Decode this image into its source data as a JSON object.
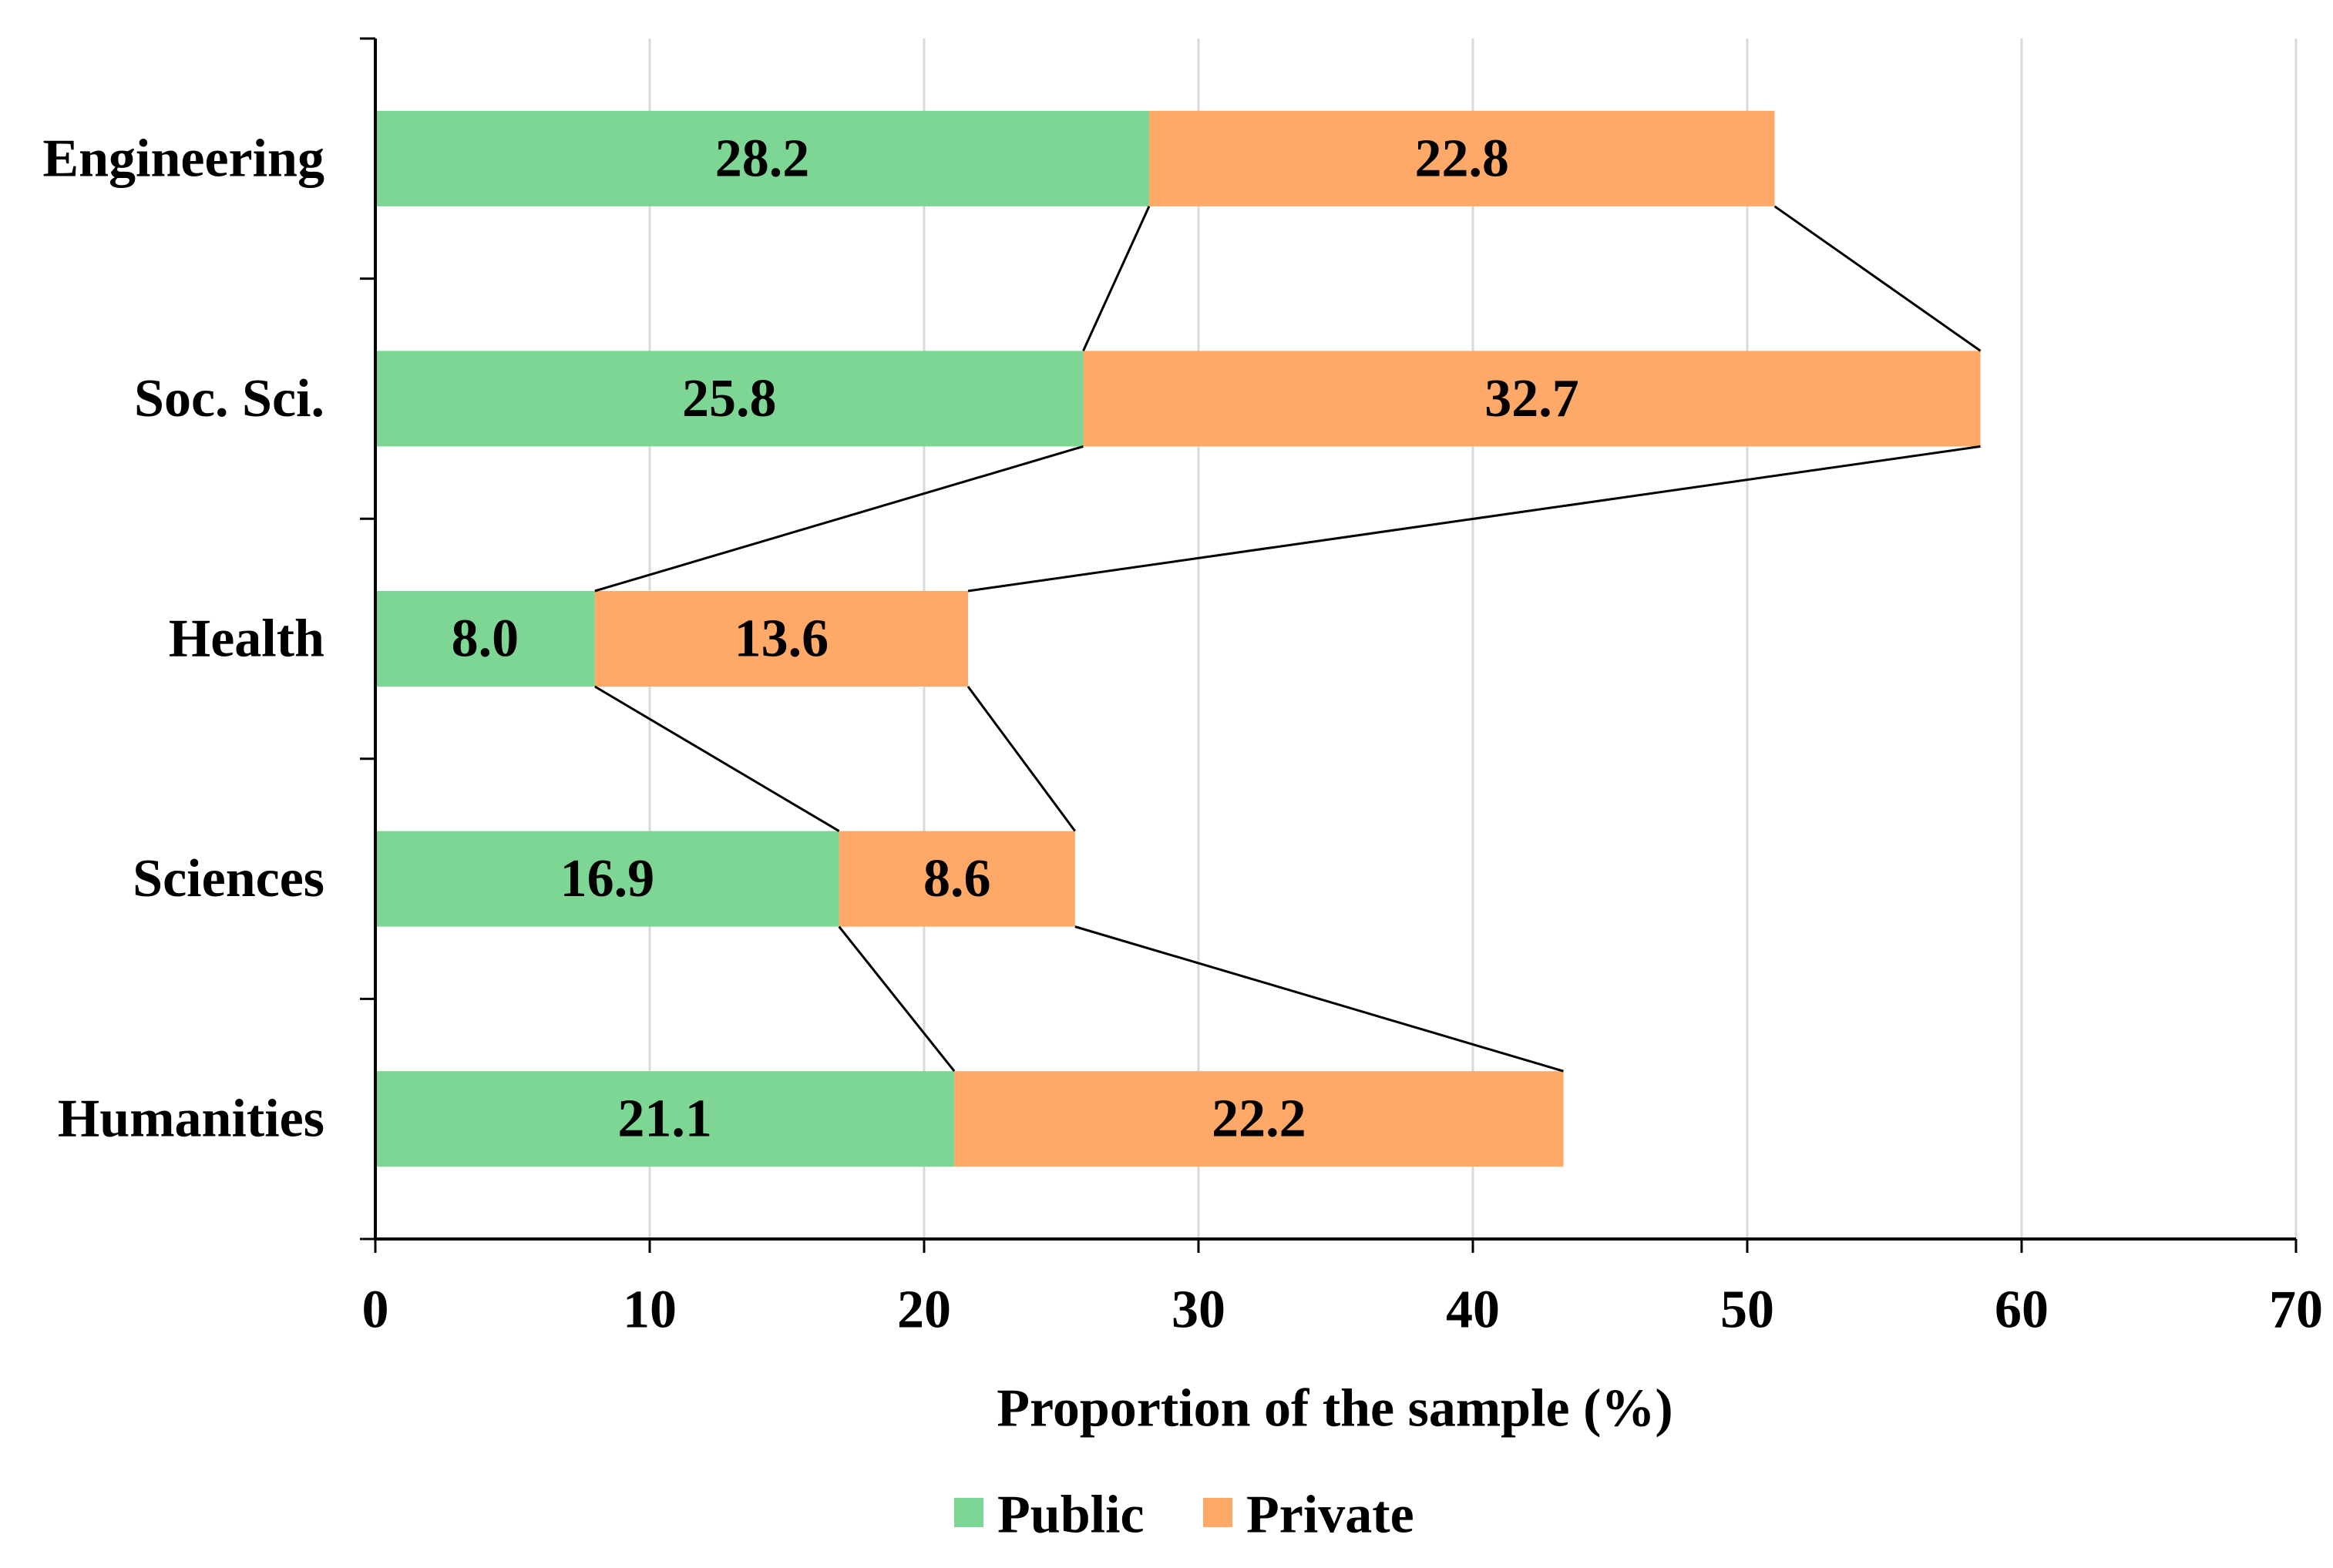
{
  "chart_data": {
    "type": "bar",
    "orientation": "horizontal",
    "stacked": true,
    "categories": [
      "Engineering",
      "Soc. Sci.",
      "Health",
      "Sciences",
      "Humanities"
    ],
    "series": [
      {
        "name": "Public",
        "values": [
          28.2,
          25.8,
          8.0,
          16.9,
          21.1
        ],
        "labels": [
          "28.2",
          "25.8",
          "8.0",
          "16.9",
          "21.1"
        ]
      },
      {
        "name": "Private",
        "values": [
          22.8,
          32.7,
          13.6,
          8.6,
          22.2
        ],
        "labels": [
          "22.8",
          "32.7",
          "13.6",
          "8.6",
          "22.2"
        ]
      }
    ],
    "xlabel": "Proportion of the sample (%)",
    "ylabel": "",
    "xlim": [
      0,
      70
    ],
    "xticks": [
      "0",
      "10",
      "20",
      "30",
      "40",
      "50",
      "60",
      "70"
    ],
    "grid": "vertical",
    "series_lines": true,
    "legend": "bottom-center"
  },
  "colors": {
    "Public": "#7dd694",
    "Private": "#fea968",
    "grid": "#d9d9d9",
    "axis": "#000000",
    "series_line": "#000000"
  }
}
